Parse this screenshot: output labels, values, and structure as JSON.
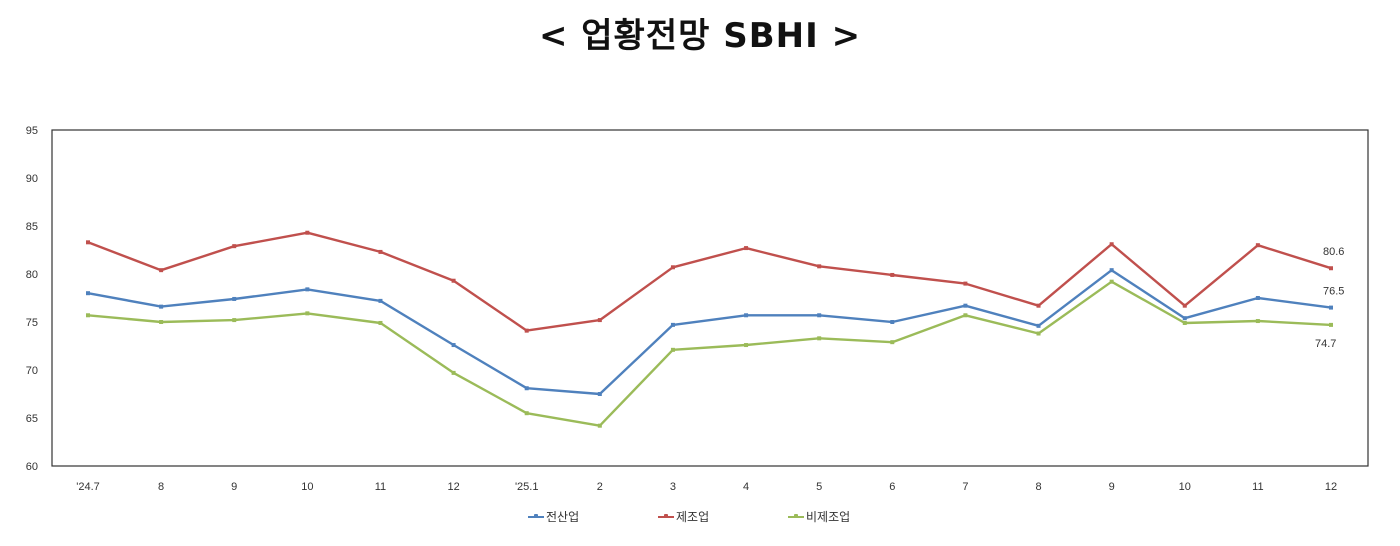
{
  "title": "< 업황전망 SBHI >",
  "chart_data": {
    "type": "line",
    "title": "< 업황전망 SBHI >",
    "xlabel": "",
    "ylabel": "",
    "ylim": [
      60,
      95
    ],
    "yticks": [
      95,
      90,
      85,
      80,
      75,
      70,
      65,
      60
    ],
    "grid": false,
    "legend_position": "bottom",
    "categories": [
      "'24.7",
      "8",
      "9",
      "10",
      "11",
      "12",
      "'25.1",
      "2",
      "3",
      "4",
      "5",
      "6",
      "7",
      "8",
      "9",
      "10",
      "11",
      "12"
    ],
    "series": [
      {
        "name": "전산업",
        "color": "#4f81bd",
        "values": [
          78.0,
          76.6,
          77.4,
          78.4,
          77.2,
          72.6,
          68.1,
          67.5,
          74.7,
          75.7,
          75.7,
          75.0,
          76.7,
          74.6,
          80.4,
          75.4,
          77.5,
          76.5
        ]
      },
      {
        "name": "제조업",
        "color": "#c0504d",
        "values": [
          83.3,
          80.4,
          82.9,
          84.3,
          82.3,
          79.3,
          74.1,
          75.2,
          80.7,
          82.7,
          80.8,
          79.9,
          79.0,
          76.7,
          83.1,
          76.7,
          83.0,
          80.6
        ]
      },
      {
        "name": "비제조업",
        "color": "#9bbb59",
        "values": [
          75.7,
          75.0,
          75.2,
          75.9,
          74.9,
          69.7,
          65.5,
          64.2,
          72.1,
          72.6,
          73.3,
          72.9,
          75.7,
          73.8,
          79.2,
          74.9,
          75.1,
          74.7
        ]
      }
    ],
    "annotations": [
      {
        "series": "제조업",
        "label": "80.6"
      },
      {
        "series": "전산업",
        "label": "76.5"
      },
      {
        "series": "비제조업",
        "label": "74.7"
      }
    ]
  },
  "legend": [
    {
      "label": "전산업",
      "color": "#4f81bd"
    },
    {
      "label": "제조업",
      "color": "#c0504d"
    },
    {
      "label": "비제조업",
      "color": "#9bbb59"
    }
  ]
}
